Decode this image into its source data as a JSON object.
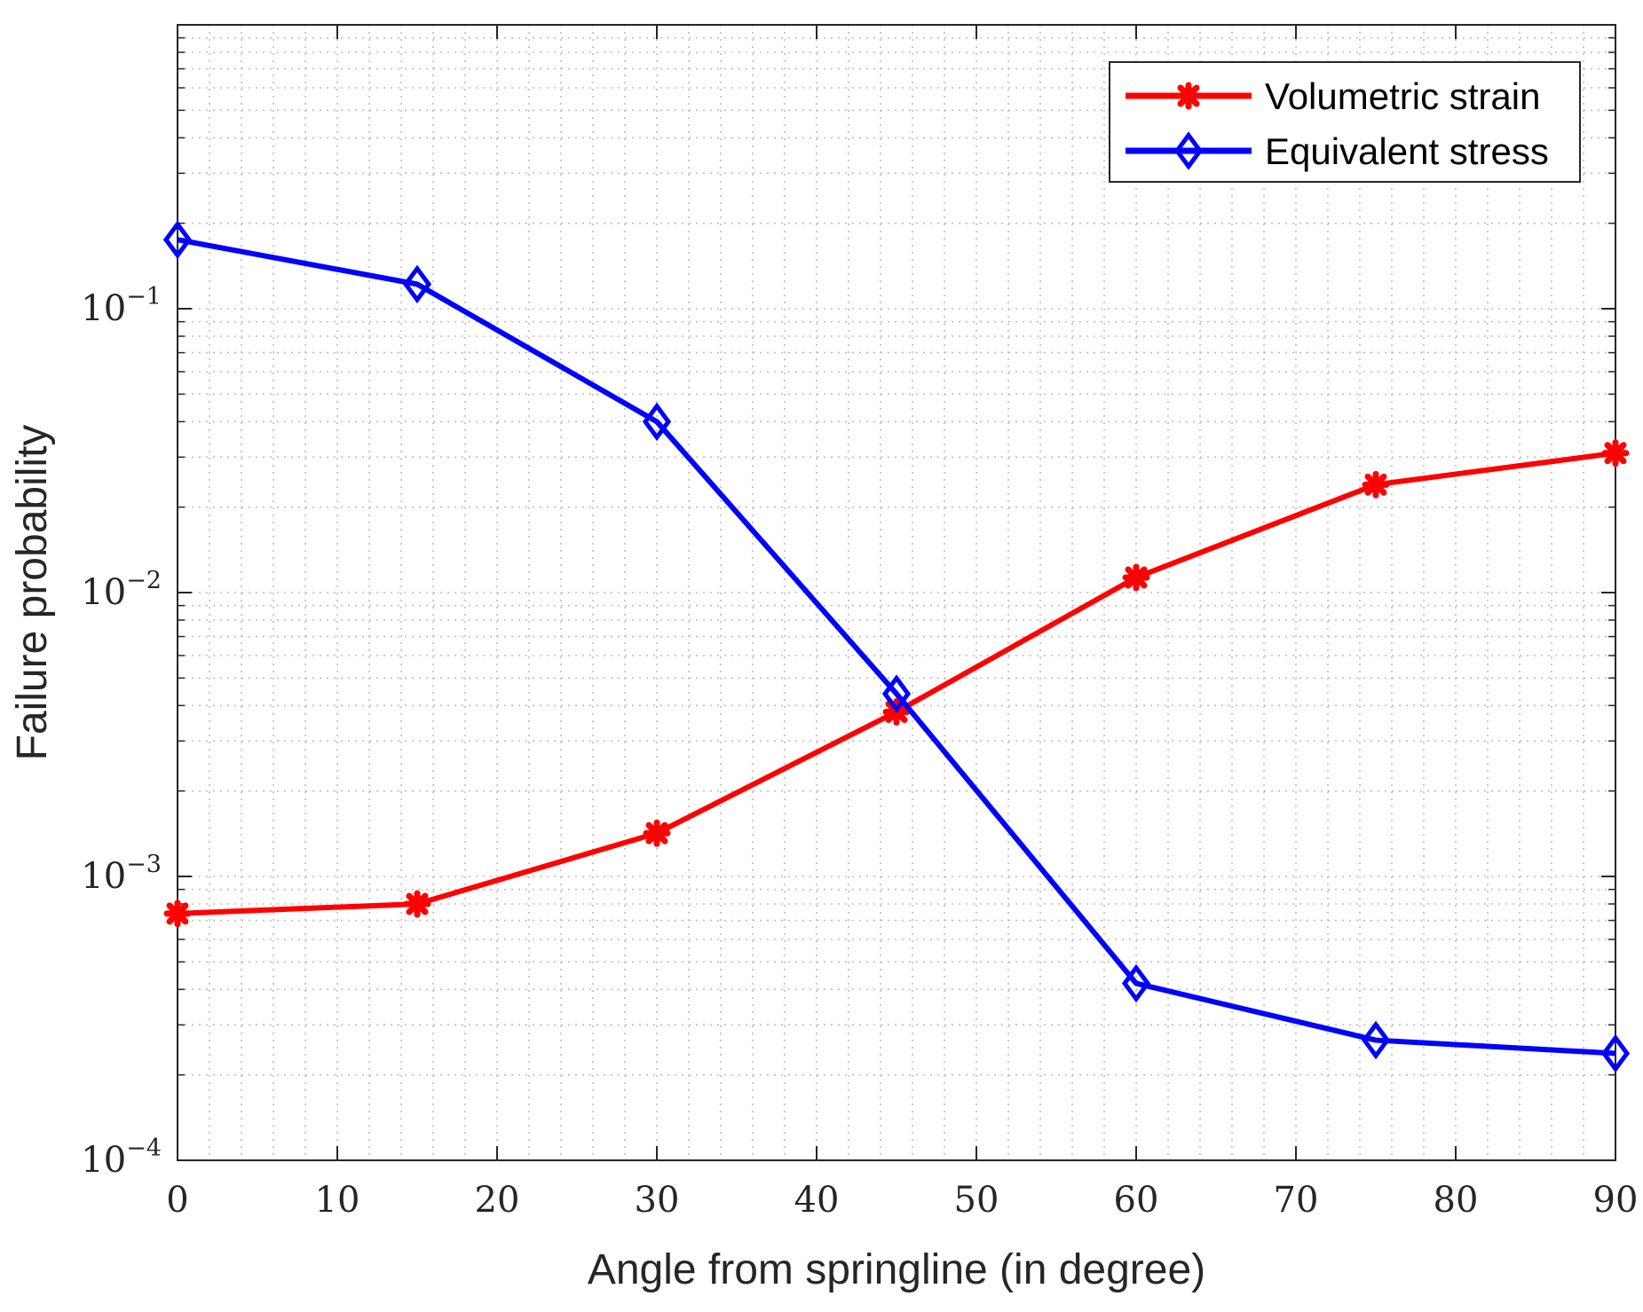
{
  "chart_data": {
    "type": "line",
    "title": "",
    "xlabel": "Angle from springline (in degree)",
    "ylabel": "Failure probability",
    "x": [
      0,
      15,
      30,
      45,
      60,
      75,
      90
    ],
    "xlim": [
      0,
      90
    ],
    "ylim": [
      0.0001,
      1
    ],
    "yscale": "log",
    "x_ticks": [
      {
        "value": 0,
        "label": "0"
      },
      {
        "value": 10,
        "label": "10"
      },
      {
        "value": 20,
        "label": "20"
      },
      {
        "value": 30,
        "label": "30"
      },
      {
        "value": 40,
        "label": "40"
      },
      {
        "value": 50,
        "label": "50"
      },
      {
        "value": 60,
        "label": "60"
      },
      {
        "value": 70,
        "label": "70"
      },
      {
        "value": 80,
        "label": "80"
      },
      {
        "value": 90,
        "label": "90"
      }
    ],
    "y_ticks": [
      {
        "value": 0.0001,
        "base": "10",
        "exp": "−4"
      },
      {
        "value": 0.001,
        "base": "10",
        "exp": "−3"
      },
      {
        "value": 0.01,
        "base": "10",
        "exp": "−2"
      },
      {
        "value": 0.1,
        "base": "10",
        "exp": "−1"
      }
    ],
    "grid": true,
    "legend_position": "top-right",
    "series": [
      {
        "name": "Volumetric strain",
        "color": "#ff0000",
        "marker": "asterisk",
        "values": [
          0.00074,
          0.0008,
          0.00142,
          0.0038,
          0.0113,
          0.024,
          0.031
        ]
      },
      {
        "name": "Equivalent stress",
        "color": "#0000ff",
        "marker": "diamond",
        "values": [
          0.175,
          0.122,
          0.04,
          0.0044,
          0.00042,
          0.000265,
          0.000238
        ]
      }
    ]
  }
}
